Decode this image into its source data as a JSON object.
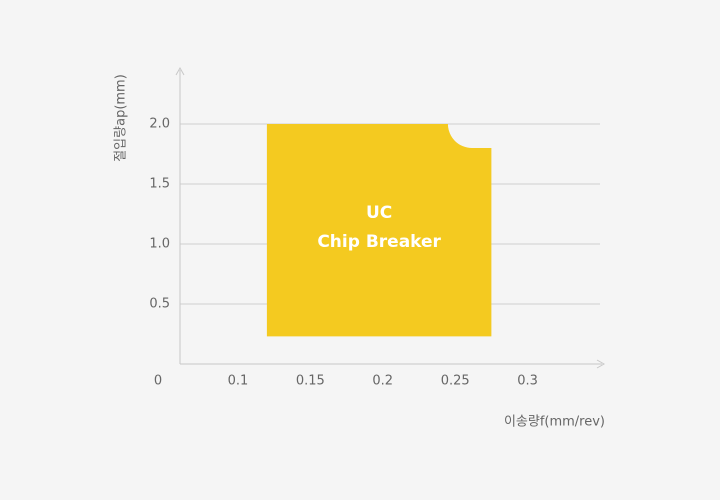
{
  "chart_data": {
    "type": "region",
    "label_lines": [
      "UC",
      "Chip Breaker"
    ],
    "x_label": "이송량f(mm/rev)",
    "y_label": "절입량ap(mm)",
    "origin_label": "0",
    "xlim": [
      0.06,
      0.35
    ],
    "ylim": [
      0,
      2.45
    ],
    "xticks": [
      0.1,
      0.15,
      0.2,
      0.25,
      0.3
    ],
    "yticks": [
      0.5,
      {
        "value": 1,
        "label": "1.0"
      },
      1.5,
      {
        "value": 2,
        "label": "2.0"
      }
    ],
    "grid": true,
    "color": "#f4ca20",
    "region": {
      "x": [
        0.12,
        0.275
      ],
      "y": [
        0.23,
        2.0
      ],
      "notch_x": 0.245,
      "notch_y": 1.8
    }
  }
}
